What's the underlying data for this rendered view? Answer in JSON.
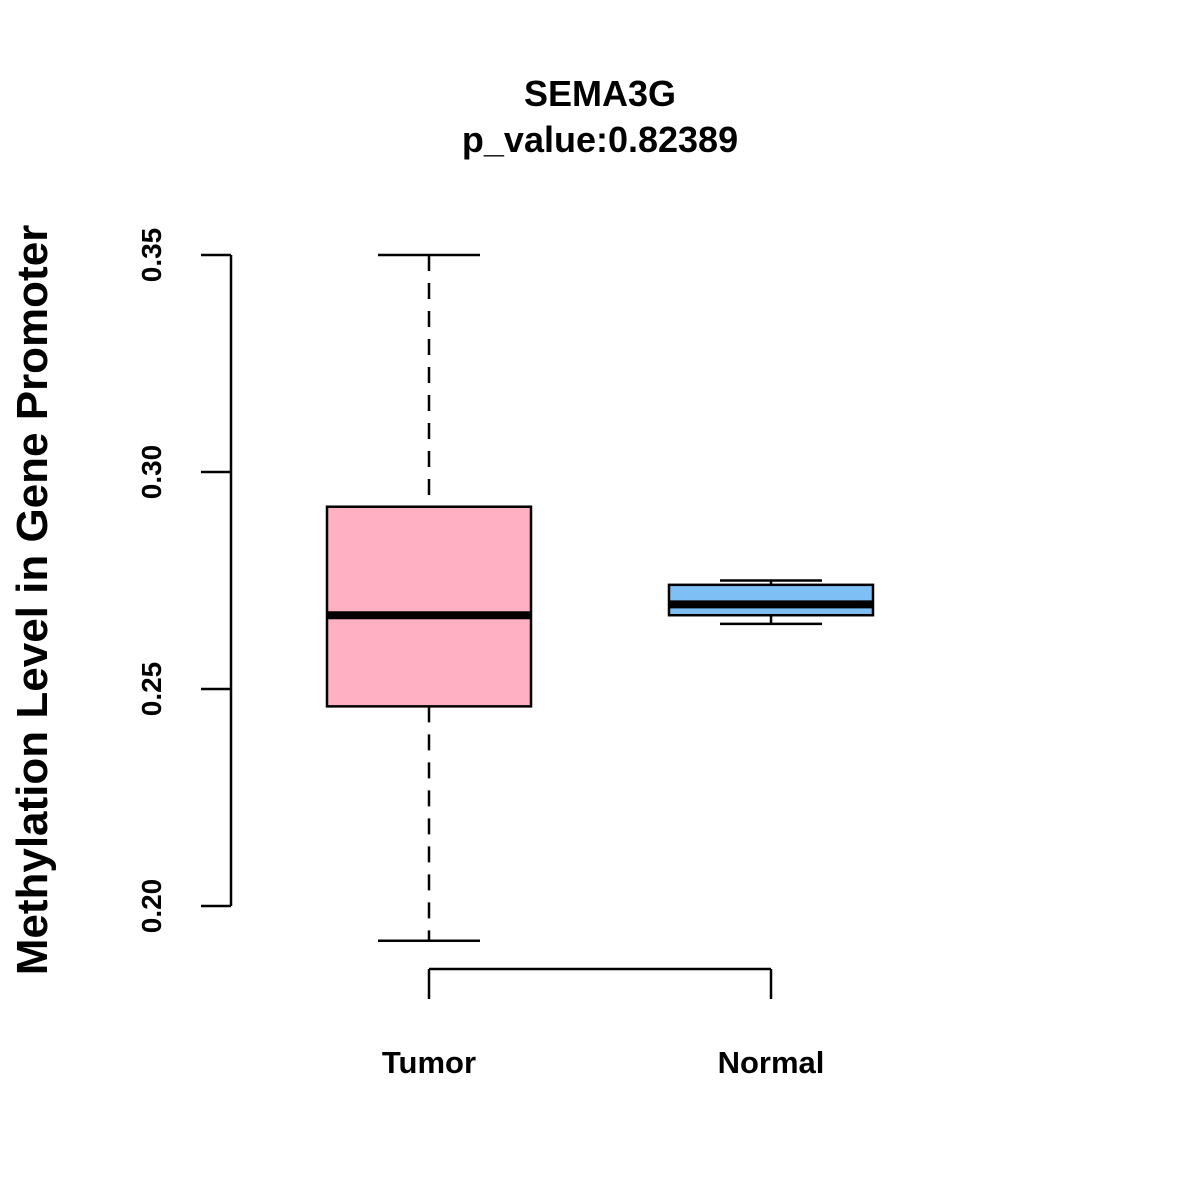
{
  "chart_data": {
    "type": "boxplot",
    "title": "SEMA3G",
    "subtitle": "p_value:0.82389",
    "xlabel": "",
    "ylabel": "Methylation Level in Gene Promoter",
    "ylim": [
      0.2,
      0.35
    ],
    "yticks": [
      "0.20",
      "0.25",
      "0.30",
      "0.35"
    ],
    "grid": false,
    "categories": [
      "Tumor",
      "Normal"
    ],
    "series": [
      {
        "category": "Tumor",
        "color": "#ffb0c2",
        "min": 0.192,
        "q1": 0.246,
        "median": 0.267,
        "q3": 0.292,
        "max": 0.35
      },
      {
        "category": "Normal",
        "color": "#7ec0f5",
        "min": 0.265,
        "q1": 0.267,
        "median": 0.2695,
        "q3": 0.274,
        "max": 0.275
      }
    ]
  }
}
